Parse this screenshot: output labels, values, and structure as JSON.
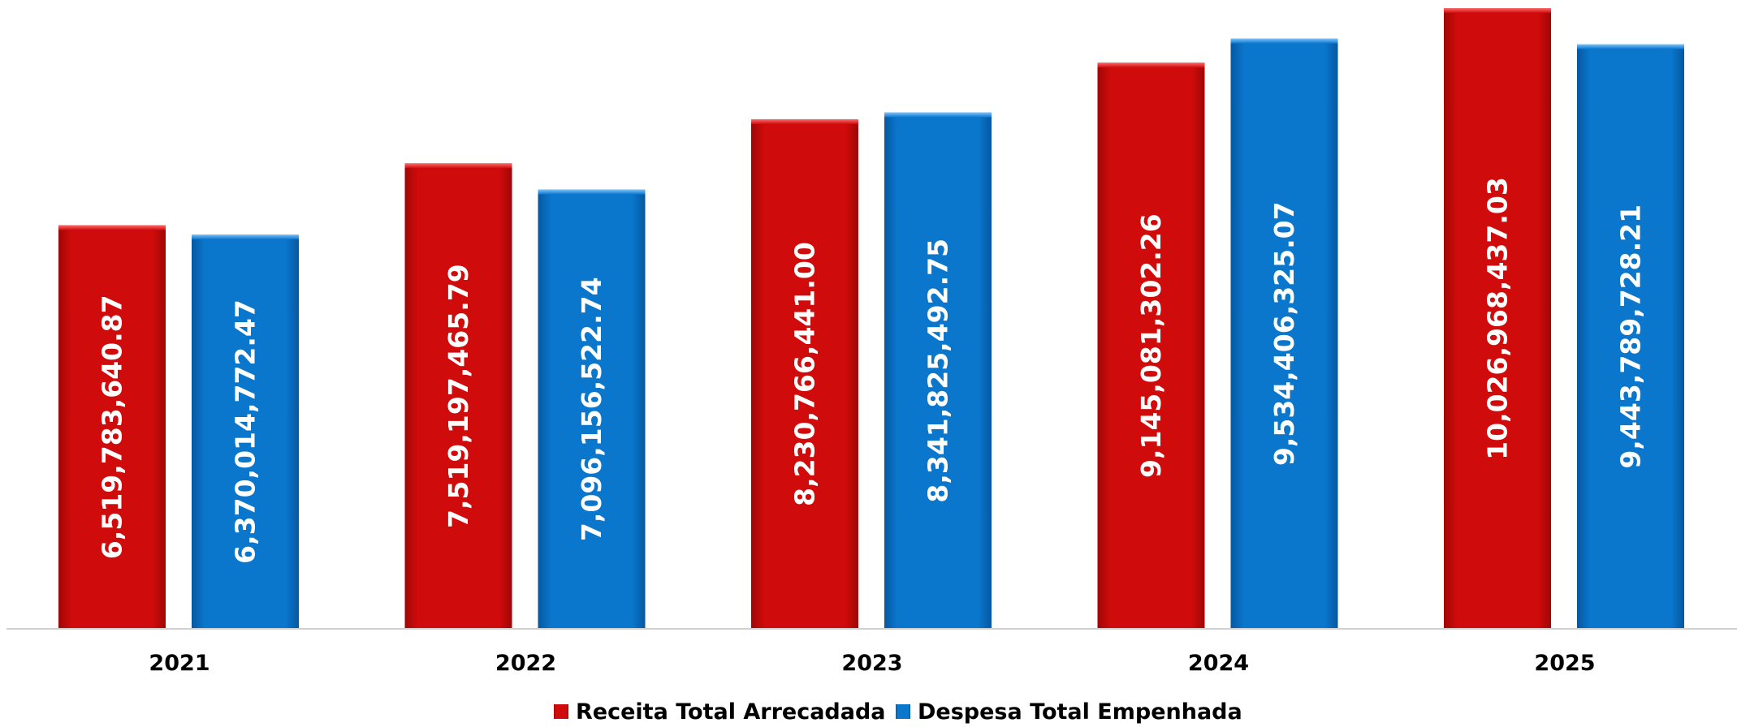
{
  "chart_data": {
    "type": "bar",
    "categories": [
      "2021",
      "2022",
      "2023",
      "2024",
      "2025"
    ],
    "series": [
      {
        "name": "Receita Total Arrecadada",
        "color": "#cc0a0a",
        "values": [
          6519783640.87,
          7519197465.79,
          8230766441.0,
          9145081302.26,
          10026968437.03
        ],
        "labels": [
          "6,519,783,640.87",
          "7,519,197,465.79",
          "8,230,766,441.00",
          "9,145,081,302.26",
          "10,026,968,437.03"
        ]
      },
      {
        "name": "Despesa Total Empenhada",
        "color": "#0a72c8",
        "values": [
          6370014772.47,
          7096156522.74,
          8341825492.75,
          9534406325.07,
          9443789728.21
        ],
        "labels": [
          "6,370,014,772.47",
          "7,096,156,522.74",
          "8,341,825,492.75",
          "9,534,406,325.07",
          "9,443,789,728.21"
        ]
      }
    ],
    "ylim": [
      0,
      10026968437.03
    ],
    "grid": false,
    "legend_position": "bottom"
  }
}
